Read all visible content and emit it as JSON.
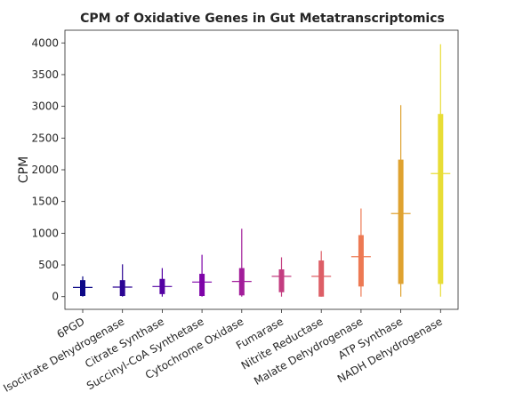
{
  "chart_data": {
    "type": "box",
    "title": "CPM of Oxidative Genes in Gut Metatranscriptomics",
    "xlabel": "",
    "ylabel": "CPM",
    "ylim": [
      -200,
      4200
    ],
    "yticks": [
      0,
      500,
      1000,
      1500,
      2000,
      2500,
      3000,
      3500,
      4000
    ],
    "grid": false,
    "legend": "none",
    "categories": [
      "6PGD",
      "Isocitrate Dehydrogenase",
      "Citrate Synthase",
      "Succinyl-CoA Synthetase",
      "Cytochrome Oxidase",
      "Fumarase",
      "Nitrite Reductase",
      "Malate Dehydrogenase",
      "ATP Synthase",
      "NADH Dehydrogenase"
    ],
    "boxes": [
      {
        "name": "6PGD",
        "whisker_low": 0,
        "q1": 10,
        "median": 145,
        "q3": 260,
        "whisker_high": 320,
        "color": "#0d0887"
      },
      {
        "name": "Isocitrate Dehydrogenase",
        "whisker_low": 0,
        "q1": 10,
        "median": 150,
        "q3": 260,
        "whisker_high": 510,
        "color": "#2c0594"
      },
      {
        "name": "Citrate Synthase",
        "whisker_low": 0,
        "q1": 40,
        "median": 160,
        "q3": 280,
        "whisker_high": 450,
        "color": "#5402a3"
      },
      {
        "name": "Succinyl-CoA Synthetase",
        "whisker_low": 0,
        "q1": 10,
        "median": 230,
        "q3": 360,
        "whisker_high": 660,
        "color": "#7e03a8"
      },
      {
        "name": "Cytochrome Oxidase",
        "whisker_low": 0,
        "q1": 20,
        "median": 240,
        "q3": 450,
        "whisker_high": 1070,
        "color": "#a21d9a"
      },
      {
        "name": "Fumarase",
        "whisker_low": 0,
        "q1": 70,
        "median": 320,
        "q3": 430,
        "whisker_high": 620,
        "color": "#c33d80"
      },
      {
        "name": "Nitrite Reductase",
        "whisker_low": 0,
        "q1": 0,
        "median": 320,
        "q3": 570,
        "whisker_high": 720,
        "color": "#dd5e66"
      },
      {
        "name": "Malate Dehydrogenase",
        "whisker_low": 0,
        "q1": 160,
        "median": 630,
        "q3": 970,
        "whisker_high": 1390,
        "color": "#ed7953"
      },
      {
        "name": "ATP Synthase",
        "whisker_low": 0,
        "q1": 200,
        "median": 1310,
        "q3": 2160,
        "whisker_high": 3020,
        "color": "#dfa230"
      },
      {
        "name": "NADH Dehydrogenase",
        "whisker_low": 0,
        "q1": 200,
        "median": 1940,
        "q3": 2880,
        "whisker_high": 3980,
        "color": "#e8dd36"
      }
    ]
  }
}
